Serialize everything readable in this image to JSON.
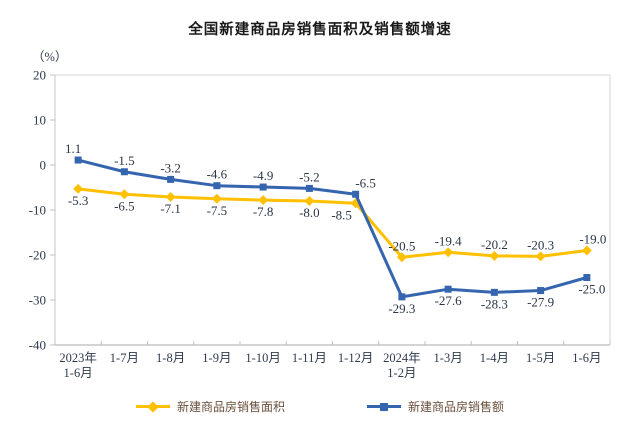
{
  "title": "全国新建商品房销售面积及销售额增速",
  "chart_data": {
    "type": "line",
    "title": "全国新建商品房销售面积及销售额增速",
    "unit_label": "（%）",
    "ylim": [
      -40,
      20
    ],
    "y_ticks": [
      20,
      10,
      0,
      -10,
      -20,
      -30,
      -40
    ],
    "grid": false,
    "legend_position": "bottom",
    "categories": [
      [
        "2023年",
        "1-6月"
      ],
      [
        "1-7月"
      ],
      [
        "1-8月"
      ],
      [
        "1-9月"
      ],
      [
        "1-10月"
      ],
      [
        "1-11月"
      ],
      [
        "1-12月"
      ],
      [
        "2024年",
        "1-2月"
      ],
      [
        "1-3月"
      ],
      [
        "1-4月"
      ],
      [
        "1-5月"
      ],
      [
        "1-6月"
      ]
    ],
    "series": [
      {
        "key": "sales-area",
        "name": "新建商品房销售面积",
        "color": "#FFC000",
        "marker": "diamond",
        "values": [
          -5.3,
          -6.5,
          -7.1,
          -7.5,
          -7.8,
          -8.0,
          -8.5,
          -20.5,
          -19.4,
          -20.2,
          -20.3,
          -19.0
        ],
        "label_pos": [
          "below",
          "below",
          "below",
          "below",
          "below",
          "below",
          "below",
          "above",
          "above",
          "above",
          "above",
          "above"
        ],
        "label_dx": [
          0,
          0,
          0,
          0,
          0,
          0,
          -14,
          0,
          0,
          0,
          0,
          6
        ]
      },
      {
        "key": "sales-amount",
        "name": "新建商品房销售额",
        "color": "#3565AF",
        "marker": "square",
        "values": [
          1.1,
          -1.5,
          -3.2,
          -4.6,
          -4.9,
          -5.2,
          -6.5,
          -29.3,
          -27.6,
          -28.3,
          -27.9,
          -25.0
        ],
        "label_pos": [
          "above",
          "above",
          "above",
          "above",
          "above",
          "above",
          "above",
          "below",
          "below",
          "below",
          "below",
          "below"
        ],
        "label_dx": [
          -5,
          0,
          0,
          0,
          0,
          0,
          10,
          0,
          0,
          0,
          0,
          5
        ]
      }
    ],
    "colors": {
      "axis_bottom": "#a8a8a8",
      "border_top_right": "#d6d6d6",
      "border_left": "#c4c4c4",
      "tick": "#c0c0c0",
      "axis_text": "#2f3b4d",
      "data_label_text": "#2b3648",
      "legend_text": "#6a4f3b"
    }
  }
}
